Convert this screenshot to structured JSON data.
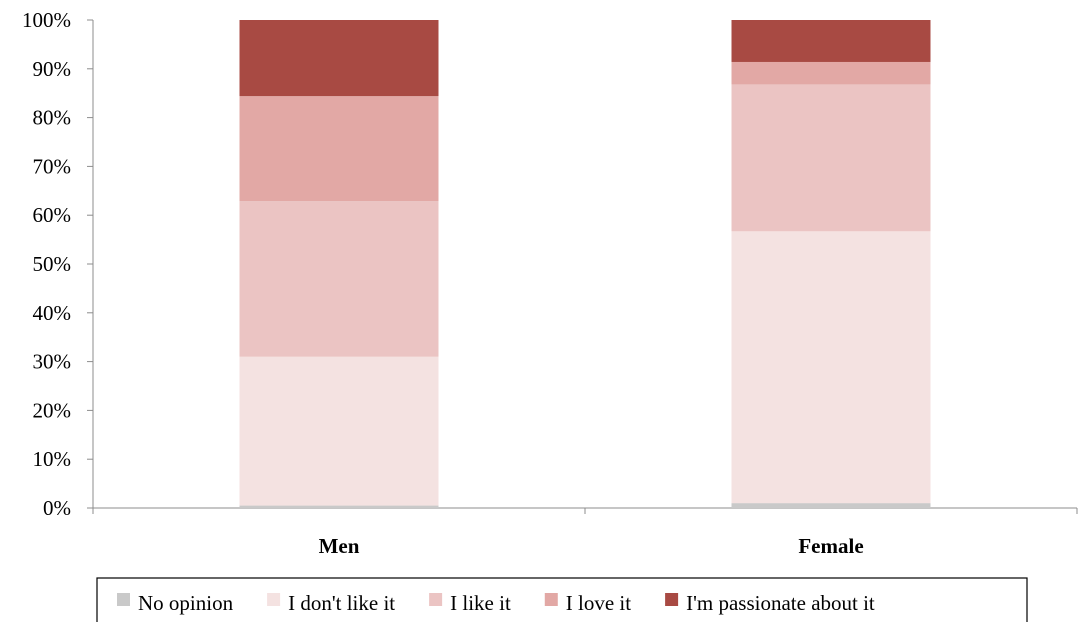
{
  "chart_data": {
    "type": "bar",
    "stacked": true,
    "percent_stacked": true,
    "categories": [
      "Men",
      "Female"
    ],
    "series": [
      {
        "name": "No opinion",
        "color": "#c9c9c9",
        "values": [
          0.5,
          1.0
        ]
      },
      {
        "name": "I don't like it",
        "color": "#f4e2e1",
        "values": [
          30.5,
          55.7
        ]
      },
      {
        "name": "I like it",
        "color": "#ebc4c3",
        "values": [
          31.9,
          30.1
        ]
      },
      {
        "name": "I love it",
        "color": "#e2a8a5",
        "values": [
          21.5,
          4.6
        ]
      },
      {
        "name": "I'm passionate about it",
        "color": "#a84a43",
        "values": [
          15.6,
          8.6
        ]
      }
    ],
    "y_ticks": [
      "0%",
      "10%",
      "20%",
      "30%",
      "40%",
      "50%",
      "60%",
      "70%",
      "80%",
      "90%",
      "100%"
    ],
    "ylim": [
      0,
      100
    ],
    "title": "",
    "xlabel": "",
    "ylabel": "",
    "grid": false,
    "legend_position": "bottom"
  }
}
